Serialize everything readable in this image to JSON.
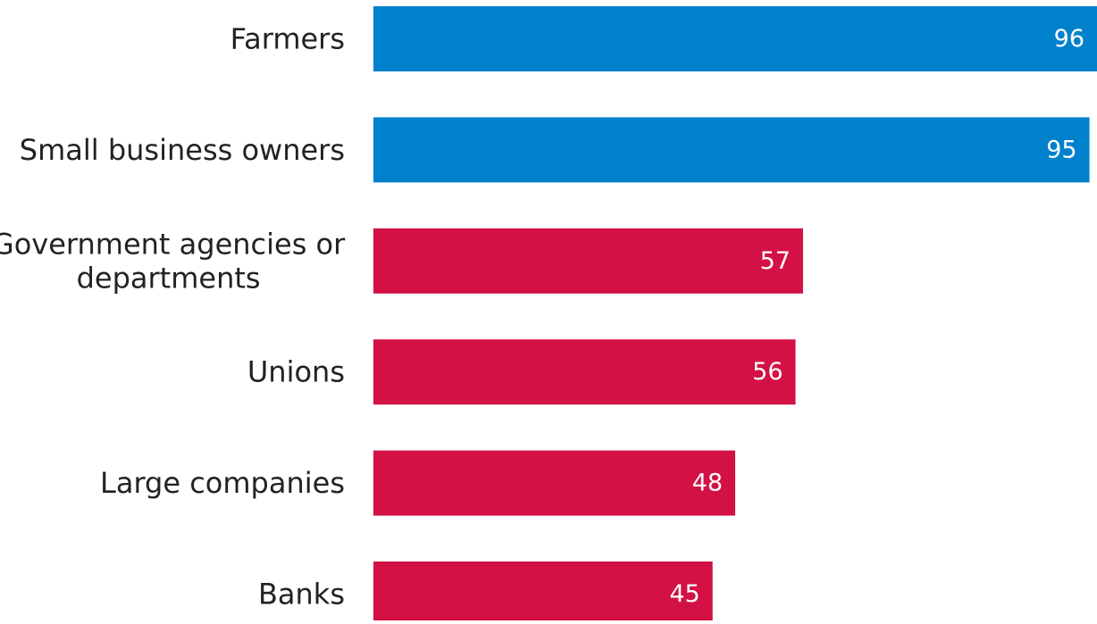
{
  "chart_data": {
    "type": "bar",
    "orientation": "horizontal",
    "categories": [
      "Farmers",
      "Small business owners",
      "Government agencies or departments",
      "Unions",
      "Large companies",
      "Banks"
    ],
    "category_lines": [
      [
        "Farmers"
      ],
      [
        "Small business owners"
      ],
      [
        "Government agencies or",
        "departments"
      ],
      [
        "Unions"
      ],
      [
        "Large companies"
      ],
      [
        "Banks"
      ]
    ],
    "values": [
      96,
      95,
      57,
      56,
      48,
      45
    ],
    "value_labels": [
      "96",
      "95",
      "57",
      "56",
      "48",
      "45"
    ],
    "bar_colors": [
      "#0081cc",
      "#0081cc",
      "#d31145",
      "#d31145",
      "#d31145",
      "#d31145"
    ],
    "xlim": [
      0,
      96
    ],
    "grid": false,
    "legend": "none"
  }
}
